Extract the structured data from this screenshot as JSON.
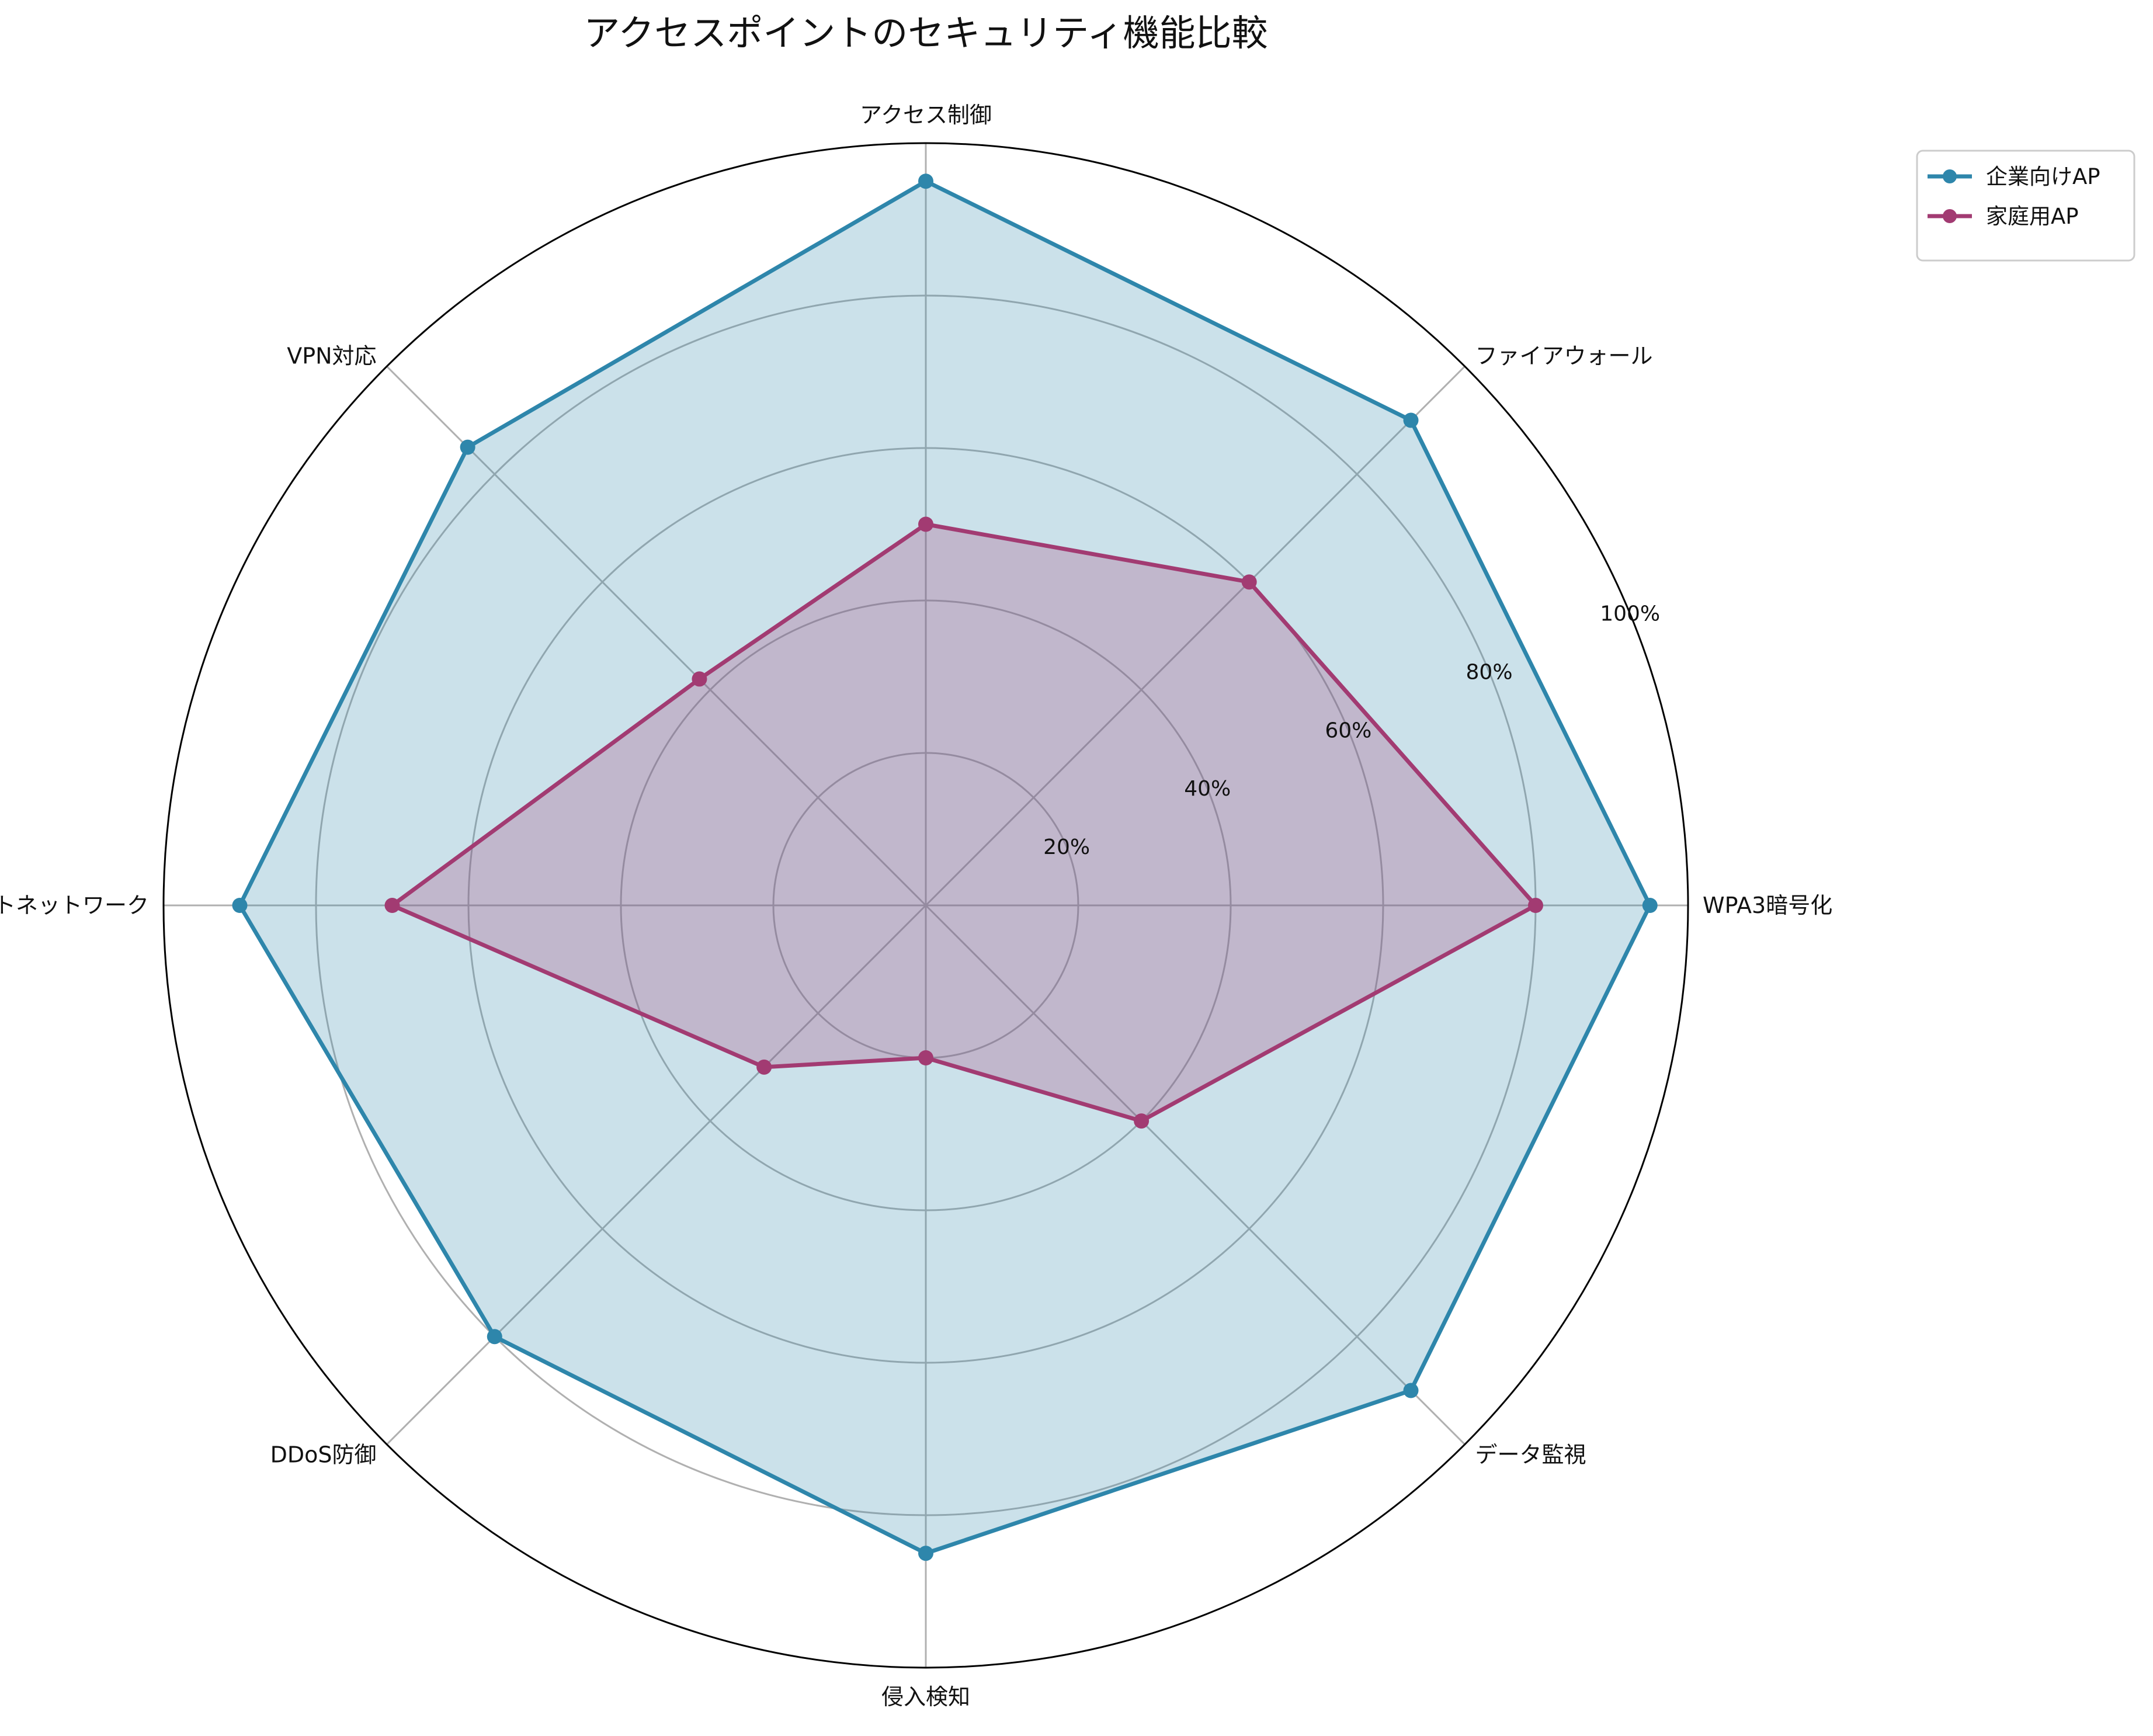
{
  "chart_data": {
    "type": "radar",
    "title": "アクセスポイントのセキュリティ機能比較",
    "categories": [
      "WPA3暗号化",
      "ファイアウォール",
      "アクセス制御",
      "VPN対応",
      "ゲストネットワーク",
      "DDoS防御",
      "侵入検知",
      "データ監視"
    ],
    "series": [
      {
        "name": "企業向けAP",
        "values": [
          95,
          90,
          95,
          85,
          90,
          80,
          85,
          90
        ],
        "color": "#2e86ab"
      },
      {
        "name": "家庭用AP",
        "values": [
          80,
          60,
          50,
          42,
          70,
          30,
          20,
          40
        ],
        "color": "#a23b72"
      }
    ],
    "rlim": [
      0,
      100
    ],
    "rticks": [
      20,
      40,
      60,
      80,
      100
    ],
    "rtick_labels": [
      "20%",
      "40%",
      "60%",
      "80%",
      "100%"
    ],
    "grid": true,
    "legend_position": "top-right"
  }
}
